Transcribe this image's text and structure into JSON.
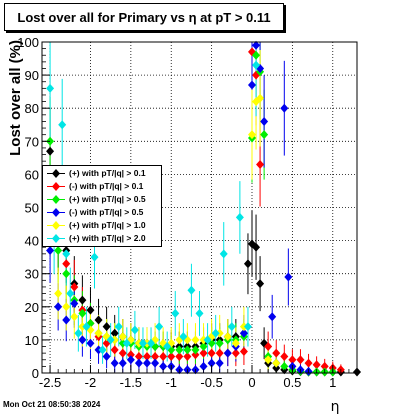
{
  "title": "Lost over all for Primary vs  η at pT > 0.11",
  "timestamp": "Mon Oct 21 08:50:38 2024",
  "chart_data": {
    "type": "scatter",
    "xlabel": "η",
    "ylabel": "Lost over all (%)",
    "xlim": [
      -2.6,
      1.3
    ],
    "ylim": [
      0,
      100
    ],
    "xticks": [
      "-2.5",
      "-2",
      "-1.5",
      "-1",
      "-0.5",
      "0",
      "0.5",
      "1"
    ],
    "xtick_values": [
      -2.5,
      -2,
      -1.5,
      -1,
      -0.5,
      0,
      0.5,
      1
    ],
    "yticks": [
      "0",
      "10",
      "20",
      "30",
      "40",
      "50",
      "60",
      "70",
      "80",
      "90",
      "100"
    ],
    "ytick_values": [
      0,
      10,
      20,
      30,
      40,
      50,
      60,
      70,
      80,
      90,
      100
    ],
    "grid": true,
    "legend_position": "left-middle",
    "series": [
      {
        "name": "(+) with pT/|q| > 0.1",
        "color": "#000000",
        "points": [
          [
            -2.5,
            67
          ],
          [
            -2.4,
            41
          ],
          [
            -2.3,
            37
          ],
          [
            -2.2,
            27
          ],
          [
            -2.1,
            22
          ],
          [
            -2.0,
            19
          ],
          [
            -1.9,
            16
          ],
          [
            -1.8,
            14
          ],
          [
            -1.7,
            12
          ],
          [
            -1.6,
            11
          ],
          [
            -1.5,
            10
          ],
          [
            -1.4,
            9
          ],
          [
            -1.3,
            9
          ],
          [
            -1.2,
            8
          ],
          [
            -1.1,
            8
          ],
          [
            -1.0,
            8
          ],
          [
            -0.9,
            8
          ],
          [
            -0.8,
            8
          ],
          [
            -0.7,
            8
          ],
          [
            -0.6,
            9
          ],
          [
            -0.5,
            10
          ],
          [
            -0.4,
            10
          ],
          [
            -0.3,
            11
          ],
          [
            -0.2,
            11
          ],
          [
            -0.1,
            12
          ],
          [
            -0.05,
            33
          ],
          [
            0.0,
            39
          ],
          [
            0.05,
            38
          ],
          [
            0.1,
            27
          ],
          [
            0.15,
            9
          ],
          [
            0.2,
            3
          ],
          [
            0.3,
            1.5
          ],
          [
            0.4,
            1
          ],
          [
            0.5,
            0.6
          ],
          [
            0.6,
            0.4
          ],
          [
            0.7,
            0.3
          ],
          [
            0.8,
            0.3
          ],
          [
            0.9,
            0.3
          ],
          [
            1.0,
            0.3
          ],
          [
            1.1,
            0.3
          ],
          [
            1.3,
            0.3
          ]
        ]
      },
      {
        "name": "(-) with pT/|q| > 0.1",
        "color": "#ff0000",
        "points": [
          [
            -2.5,
            46
          ],
          [
            -2.4,
            40
          ],
          [
            -2.3,
            33
          ],
          [
            -2.2,
            26
          ],
          [
            -2.1,
            19
          ],
          [
            -2.0,
            15
          ],
          [
            -1.9,
            11
          ],
          [
            -1.8,
            9
          ],
          [
            -1.7,
            7
          ],
          [
            -1.6,
            6
          ],
          [
            -1.5,
            5.5
          ],
          [
            -1.4,
            5
          ],
          [
            -1.3,
            5
          ],
          [
            -1.2,
            5
          ],
          [
            -1.1,
            5
          ],
          [
            -1.0,
            5
          ],
          [
            -0.9,
            5
          ],
          [
            -0.8,
            5
          ],
          [
            -0.7,
            5.5
          ],
          [
            -0.6,
            6
          ],
          [
            -0.5,
            6
          ],
          [
            -0.4,
            6
          ],
          [
            -0.3,
            6
          ],
          [
            -0.2,
            6
          ],
          [
            -0.1,
            6.5
          ],
          [
            0.0,
            97
          ],
          [
            0.05,
            90
          ],
          [
            0.1,
            63
          ],
          [
            0.2,
            8
          ],
          [
            0.3,
            6
          ],
          [
            0.4,
            5
          ],
          [
            0.5,
            4
          ],
          [
            0.6,
            4
          ],
          [
            0.7,
            3
          ],
          [
            0.8,
            2.5
          ],
          [
            0.9,
            2
          ],
          [
            1.0,
            1.5
          ],
          [
            1.1,
            1
          ]
        ]
      },
      {
        "name": "(+) with pT/|q| > 0.5",
        "color": "#00ee00",
        "points": [
          [
            -2.5,
            70
          ],
          [
            -2.4,
            37
          ],
          [
            -2.3,
            30
          ],
          [
            -2.2,
            22
          ],
          [
            -2.1,
            18
          ],
          [
            -2.0,
            15
          ],
          [
            -1.9,
            12
          ],
          [
            -1.8,
            11
          ],
          [
            -1.7,
            10
          ],
          [
            -1.6,
            9
          ],
          [
            -1.5,
            9
          ],
          [
            -1.4,
            8
          ],
          [
            -1.3,
            8
          ],
          [
            -1.2,
            8
          ],
          [
            -1.1,
            8
          ],
          [
            -1.0,
            7
          ],
          [
            -0.9,
            7
          ],
          [
            -0.8,
            7
          ],
          [
            -0.7,
            7
          ],
          [
            -0.6,
            8
          ],
          [
            -0.5,
            9
          ],
          [
            -0.4,
            9
          ],
          [
            -0.3,
            10
          ],
          [
            -0.2,
            10
          ],
          [
            -0.1,
            11
          ],
          [
            0.0,
            71
          ],
          [
            0.05,
            96
          ],
          [
            0.1,
            91
          ],
          [
            0.15,
            72
          ],
          [
            0.2,
            5
          ],
          [
            0.3,
            3
          ],
          [
            0.4,
            2
          ],
          [
            0.5,
            1
          ],
          [
            0.6,
            0.5
          ],
          [
            0.7,
            0.3
          ],
          [
            0.8,
            0.3
          ],
          [
            0.9,
            0.3
          ],
          [
            1.0,
            0.3
          ]
        ]
      },
      {
        "name": "(-) with pT/|q| > 0.5",
        "color": "#0000ee",
        "points": [
          [
            -2.5,
            37
          ],
          [
            -2.4,
            20
          ],
          [
            -2.3,
            16
          ],
          [
            -2.2,
            21
          ],
          [
            -2.1,
            10
          ],
          [
            -2.0,
            9
          ],
          [
            -1.9,
            7
          ],
          [
            -1.8,
            5
          ],
          [
            -1.7,
            3
          ],
          [
            -1.6,
            3
          ],
          [
            -1.5,
            4
          ],
          [
            -1.4,
            3
          ],
          [
            -1.3,
            3
          ],
          [
            -1.2,
            3
          ],
          [
            -1.1,
            2
          ],
          [
            -1.0,
            2
          ],
          [
            -0.9,
            1
          ],
          [
            -0.8,
            1
          ],
          [
            -0.7,
            1
          ],
          [
            -0.6,
            2
          ],
          [
            -0.5,
            3
          ],
          [
            -0.4,
            3
          ],
          [
            -0.3,
            6
          ],
          [
            -0.2,
            8
          ],
          [
            -0.1,
            12
          ],
          [
            0.0,
            87
          ],
          [
            0.05,
            99
          ],
          [
            0.1,
            92
          ],
          [
            0.15,
            76
          ],
          [
            0.25,
            17
          ],
          [
            0.3,
            3
          ],
          [
            0.4,
            80
          ],
          [
            0.45,
            29
          ],
          [
            0.5,
            2
          ],
          [
            0.6,
            1
          ],
          [
            0.7,
            0.5
          ]
        ]
      },
      {
        "name": "(+) with pT/|q| > 1.0",
        "color": "#ffff00",
        "points": [
          [
            -2.4,
            24
          ],
          [
            -2.3,
            20
          ],
          [
            -2.2,
            17
          ],
          [
            -2.1,
            14
          ],
          [
            -2.0,
            13
          ],
          [
            -1.9,
            12
          ],
          [
            -1.8,
            11
          ],
          [
            -1.7,
            10
          ],
          [
            -1.6,
            11
          ],
          [
            -1.5,
            10
          ],
          [
            -1.4,
            9
          ],
          [
            -1.3,
            9
          ],
          [
            -1.2,
            10
          ],
          [
            -1.1,
            9
          ],
          [
            -1.0,
            9
          ],
          [
            -0.9,
            10
          ],
          [
            -0.8,
            10
          ],
          [
            -0.7,
            10
          ],
          [
            -0.6,
            10
          ],
          [
            -0.5,
            11
          ],
          [
            -0.4,
            12
          ],
          [
            -0.3,
            11
          ],
          [
            -0.2,
            9
          ],
          [
            -0.1,
            14
          ],
          [
            0.0,
            72
          ],
          [
            0.05,
            82
          ],
          [
            0.1,
            83
          ],
          [
            0.2,
            4
          ],
          [
            0.3,
            3
          ]
        ]
      },
      {
        "name": "(+) with pT/|q| > 2.0",
        "color": "#00e5e5",
        "points": [
          [
            -2.5,
            86
          ],
          [
            -2.45,
            40
          ],
          [
            -2.35,
            75
          ],
          [
            -2.3,
            36
          ],
          [
            -2.25,
            24
          ],
          [
            -2.15,
            12
          ],
          [
            -2.05,
            14
          ],
          [
            -1.95,
            35
          ],
          [
            -1.85,
            7
          ],
          [
            -1.75,
            10
          ],
          [
            -1.65,
            14
          ],
          [
            -1.55,
            9
          ],
          [
            -1.45,
            13
          ],
          [
            -1.35,
            9
          ],
          [
            -1.25,
            9
          ],
          [
            -1.15,
            14
          ],
          [
            -1.05,
            8
          ],
          [
            -0.95,
            18
          ],
          [
            -0.85,
            11
          ],
          [
            -0.75,
            25
          ],
          [
            -0.65,
            18
          ],
          [
            -0.55,
            10
          ],
          [
            -0.45,
            12
          ],
          [
            -0.35,
            36
          ],
          [
            -0.25,
            14
          ],
          [
            -0.15,
            47
          ],
          [
            -0.05,
            14
          ],
          [
            0.05,
            93
          ]
        ]
      }
    ]
  }
}
